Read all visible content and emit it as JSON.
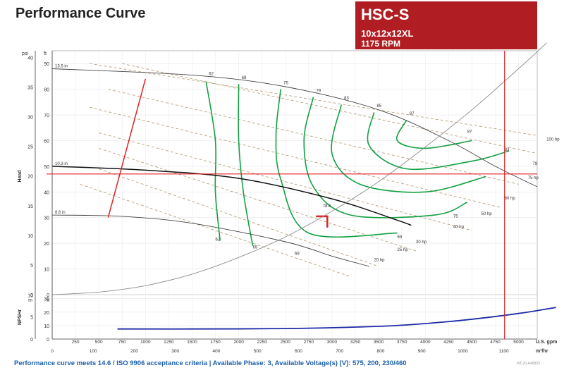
{
  "title": "Performance Curve",
  "badge": {
    "model": "HSC-S",
    "size": "10x12x12XL",
    "speed": "1175 RPM"
  },
  "footer": "Performance curve meets 14.6 / ISO 9906 acceptance criteria | Available Phase: 3, Available Voltage(s) [V]: 575, 200, 230/460",
  "footer_id": "WC20-A48893",
  "colors": {
    "accent": "#b01e23",
    "efficiency": "#12a042",
    "region": "#fbf8c8",
    "hp": "#b9a079",
    "npshr": "#1b2aa5",
    "system": "#8c8c8c",
    "duty": "#e02222"
  },
  "chart_data": {
    "type": "line",
    "x_primary": {
      "label": "U.S. gpm",
      "ticks": [
        250,
        500,
        750,
        1000,
        1250,
        1500,
        1750,
        2000,
        2250,
        2500,
        2750,
        3000,
        3250,
        3500,
        3750,
        4000,
        4250,
        4500,
        4750,
        5000
      ],
      "range": [
        0,
        5200
      ]
    },
    "x_secondary": {
      "label": "m³/hr",
      "ticks": [
        0,
        100,
        200,
        300,
        400,
        500,
        600,
        700,
        800,
        900,
        1000,
        1100
      ]
    },
    "y_head": {
      "label": "Head",
      "unit_ft": "ft",
      "unit_psi": "psi",
      "ft_ticks": [
        0,
        10,
        20,
        30,
        40,
        50,
        60,
        70,
        80,
        90
      ],
      "psi_ticks": [
        0,
        5,
        10,
        15,
        20,
        25,
        30,
        35,
        40
      ],
      "range_ft": [
        0,
        95
      ]
    },
    "y_npshr": {
      "label": "NPSHr",
      "unit_ft": "ft",
      "unit_m": "m",
      "ft_ticks": [
        0,
        10,
        20,
        30
      ],
      "m_ticks": [
        0,
        5,
        10
      ],
      "range_ft": [
        0,
        33
      ]
    },
    "impellers": [
      {
        "label": "13.5 in",
        "points": [
          [
            0,
            88
          ],
          [
            1500,
            85.5
          ],
          [
            2500,
            81
          ],
          [
            3500,
            72
          ],
          [
            4250,
            60
          ],
          [
            4750,
            50
          ],
          [
            5200,
            42
          ]
        ]
      },
      {
        "label": "10.3 in",
        "points": [
          [
            0,
            50
          ],
          [
            1000,
            48.5
          ],
          [
            2000,
            45.3
          ],
          [
            3000,
            37.3
          ],
          [
            3700,
            29
          ],
          [
            3850,
            27
          ]
        ]
      },
      {
        "label": "8.6 in",
        "points": [
          [
            0,
            31
          ],
          [
            750,
            30.5
          ],
          [
            1500,
            27.8
          ],
          [
            2500,
            20.6
          ],
          [
            3000,
            15
          ],
          [
            3400,
            11
          ]
        ]
      }
    ],
    "efficiency_labels_top": [
      "62",
      "69",
      "75",
      "79",
      "83",
      "85",
      "87"
    ],
    "efficiency_labels_right": [
      {
        "label": "87",
        "x": 4450,
        "y": 63
      },
      {
        "label": "83",
        "x": 4850,
        "y": 56
      },
      {
        "label": "79",
        "x": 5150,
        "y": 50.5
      },
      {
        "label": "75",
        "x": 4300,
        "y": 30
      },
      {
        "label": "69",
        "x": 3700,
        "y": 22
      }
    ],
    "efficiency_labels_bottom": [
      "62",
      "69",
      "69"
    ],
    "hp_labels": [
      "100 hp",
      "75 hp",
      "60 hp",
      "50 hp",
      "40 hp",
      "30 hp",
      "25 hp",
      "20 hp"
    ],
    "bep_label": "78.6",
    "npshr": [
      [
        700,
        7.5
      ],
      [
        1500,
        7.5
      ],
      [
        2500,
        7.8
      ],
      [
        3300,
        9
      ],
      [
        3800,
        10.5
      ],
      [
        4400,
        14
      ],
      [
        5000,
        19
      ],
      [
        5400,
        23.5
      ]
    ],
    "system_curve": [
      [
        0,
        0
      ],
      [
        500,
        1
      ],
      [
        1000,
        3.5
      ],
      [
        1500,
        8
      ],
      [
        2000,
        14.5
      ],
      [
        2500,
        22.5
      ],
      [
        3000,
        32.5
      ],
      [
        3500,
        44
      ],
      [
        4000,
        57.5
      ],
      [
        4500,
        72
      ],
      [
        5000,
        88
      ],
      [
        5300,
        98
      ]
    ],
    "duty_point": {
      "flow": 4850,
      "head": 47
    }
  }
}
